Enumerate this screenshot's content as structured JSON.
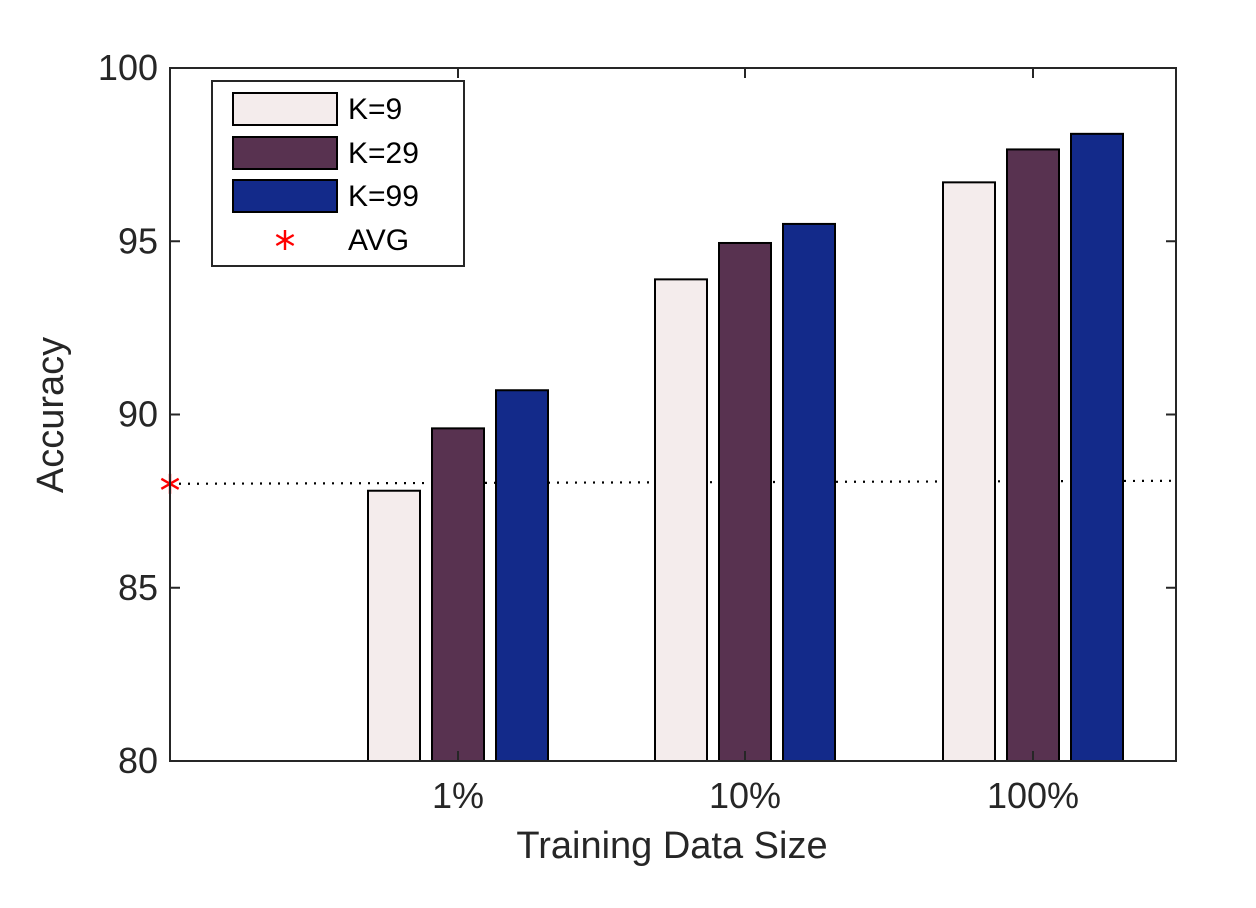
{
  "chart_data": {
    "type": "bar",
    "title": "",
    "xlabel": "Training Data Size",
    "ylabel": "Accuracy",
    "categories": [
      "1%",
      "10%",
      "100%"
    ],
    "ylim": [
      80,
      100
    ],
    "yticks": [
      80,
      85,
      90,
      95,
      100
    ],
    "ytick_labels": [
      "80",
      "85",
      "90",
      "95",
      "100"
    ],
    "grid": false,
    "legend_position": "top-left",
    "series": [
      {
        "name": "K=9",
        "color": "#f4ecec",
        "values": [
          87.8,
          93.9,
          96.7
        ]
      },
      {
        "name": "K=29",
        "color": "#583250",
        "values": [
          89.6,
          94.95,
          97.65
        ]
      },
      {
        "name": "K=99",
        "color": "#132a8a",
        "values": [
          90.7,
          95.5,
          98.1
        ]
      }
    ],
    "reference": {
      "name": "AVG",
      "value": 88.0,
      "marker": "*",
      "color": "#ff0000"
    }
  }
}
